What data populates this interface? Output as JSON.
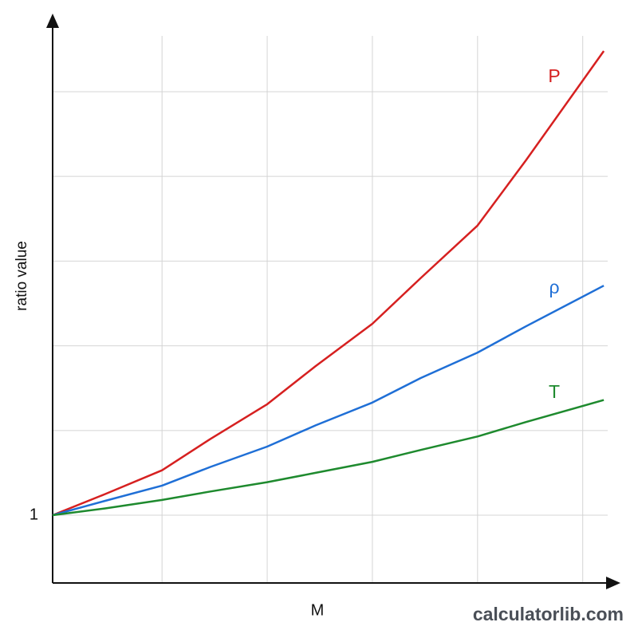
{
  "chart_data": {
    "type": "line",
    "x_label": "M",
    "y_label": "ratio value",
    "watermark": "calculatorlib.com",
    "x": [
      0,
      0.5,
      1.04,
      1.5,
      2.04,
      2.5,
      3.04,
      3.5,
      4.04,
      4.5,
      5.24
    ],
    "xlim": [
      0,
      5.3
    ],
    "xgrid": [
      1.04,
      2.04,
      3.04,
      4.04,
      5.04
    ],
    "ylim": [
      0.2,
      6.8
    ],
    "yticks": [
      1
    ],
    "ygrid": [
      1,
      2,
      3,
      4,
      5,
      6
    ],
    "grid": true,
    "series": [
      {
        "name": "P",
        "color": "#d62020",
        "values": [
          1,
          1.25,
          1.53,
          1.9,
          2.31,
          2.76,
          3.26,
          3.8,
          4.42,
          5.19,
          6.48
        ]
      },
      {
        "name": "ρ",
        "color": "#1f6fd6",
        "values": [
          1,
          1.17,
          1.35,
          1.57,
          1.81,
          2.06,
          2.33,
          2.62,
          2.92,
          3.23,
          3.71
        ]
      },
      {
        "name": "T",
        "color": "#1e8a2e",
        "values": [
          1,
          1.08,
          1.18,
          1.28,
          1.39,
          1.5,
          1.63,
          1.77,
          1.93,
          2.1,
          2.36
        ]
      }
    ]
  }
}
